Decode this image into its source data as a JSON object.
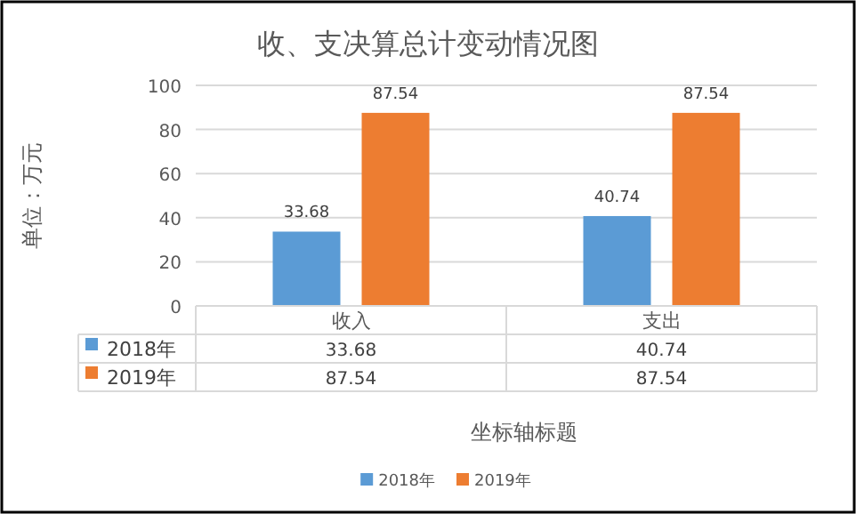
{
  "chart_data": {
    "type": "bar",
    "title": "收、支决算总计变动情况图",
    "xlabel": "坐标轴标题",
    "ylabel": "单位：万元",
    "categories": [
      "收入",
      "支出"
    ],
    "series": [
      {
        "name": "2018年",
        "color": "#5b9bd5",
        "values": [
          33.68,
          40.74
        ],
        "value_labels": [
          "33.68",
          "40.74"
        ]
      },
      {
        "name": "2019年",
        "color": "#ed7d31",
        "values": [
          87.54,
          87.54
        ],
        "value_labels": [
          "87.54",
          "87.54"
        ]
      }
    ],
    "ylim": [
      0,
      100
    ],
    "yticks": [
      0,
      20,
      40,
      60,
      80,
      100
    ],
    "grid": "y",
    "legend": "bottom"
  }
}
